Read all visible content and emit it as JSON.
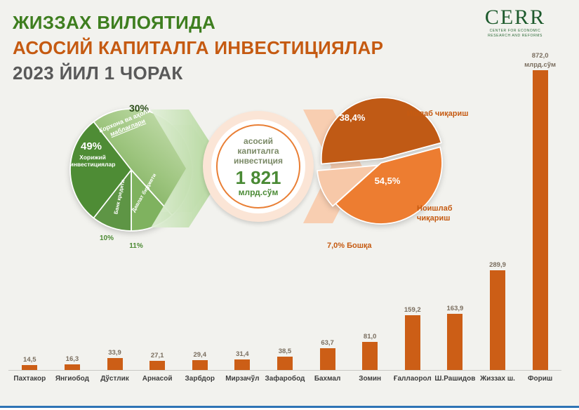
{
  "header": {
    "line1": "ЖИЗЗАХ ВИЛОЯТИДА",
    "line2": "АСОСИЙ КАПИТАЛГА ИНВЕСТИЦИЯЛАР",
    "line3": "2023 ЙИЛ 1 ЧОРАК"
  },
  "logo": {
    "name": "CERR",
    "sub1": "CENTER FOR ECONOMIC",
    "sub2": "RESEARCH AND REFORMS"
  },
  "center_circle": {
    "line1": "асосий",
    "line2": "капиталга",
    "line3": "инвестиция",
    "value": "1 821",
    "unit": "млрд.сўм"
  },
  "sources_pie": {
    "pct_30": "30%",
    "seg_30_line1": "Корхона ва аҳоли",
    "seg_30_line2": "маблағлари",
    "pct_49": "49%",
    "seg_49": "Хорижий инвестициялар",
    "seg_bank": "Банк кредити",
    "seg_budget": "Давлат бюджети",
    "pct_10": "10%",
    "pct_11": "11%"
  },
  "usage_pie": {
    "pct_production": "38,4%",
    "label_production": "Ишлаб чиқариш",
    "pct_nonproduction": "54,5%",
    "label_nonproduction_1": "Ноишлаб",
    "label_nonproduction_2": "чиқариш",
    "label_other": "7,0% Бошқа"
  },
  "colors": {
    "title_green": "#3e7e1f",
    "title_orange": "#c55a11",
    "title_gray": "#595959",
    "pie_green_dark": "#4e8c35",
    "pie_green_mid": "#7fb25f",
    "pie_green_deep": "#5e9545",
    "pie_green_pale": "#cfe4ba",
    "pie_orange_dark": "#c05a15",
    "pie_orange_mid": "#ed7d31",
    "pie_orange_pale": "#f7c8a8",
    "bar_orange": "#cc5e16",
    "logo_green": "#1d5a2c",
    "accent_blue": "#2e74b5"
  },
  "chart_data": [
    {
      "type": "pie",
      "labels": [
        "Хорижий инвестициялар",
        "Корхона ва аҳоли маблағлари",
        "Давлат бюджети",
        "Банк кредити"
      ],
      "values": [
        49,
        30,
        11,
        10
      ],
      "unit": "%",
      "legend_position": "inside"
    },
    {
      "type": "pie",
      "labels": [
        "Ноишлаб чиқариш",
        "Ишлаб чиқариш",
        "Бошқа"
      ],
      "values": [
        54.5,
        38.4,
        7.0
      ],
      "unit": "%",
      "legend_position": "outside"
    },
    {
      "type": "bar",
      "categories": [
        "Пахтакор",
        "Янгиобод",
        "Дўстлик",
        "Арнасой",
        "Зарбдор",
        "Мирзачўл",
        "Зафаробод",
        "Бахмал",
        "Зомин",
        "Ғаллаорол",
        "Ш.Рашидов",
        "Жиззах ш.",
        "Фориш"
      ],
      "values": [
        14.5,
        16.3,
        33.9,
        27.1,
        29.4,
        31.4,
        38.5,
        63.7,
        81.0,
        159.2,
        163.9,
        289.9,
        872.0
      ],
      "value_labels": [
        "14,5",
        "16,3",
        "33,9",
        "27,1",
        "29,4",
        "31,4",
        "38,5",
        "63,7",
        "81,0",
        "159,2",
        "163,9",
        "289,9",
        "872,0"
      ],
      "unit_label": "млрд.сўм",
      "ylabel": "млрд.сўм",
      "ylim": [
        0,
        900
      ],
      "grid": false
    }
  ]
}
